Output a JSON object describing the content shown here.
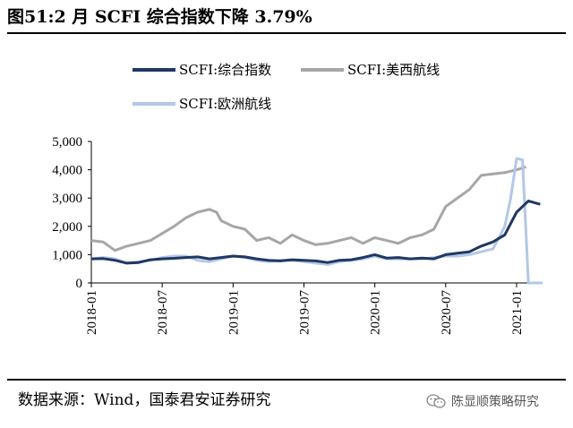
{
  "title": "图51:2 月 SCFI 综合指数下降 3.79%",
  "source": "数据来源：Wind，国泰君安证券研究",
  "watermark": "陈显顺策略研究",
  "colors": {
    "composite": "#1f3864",
    "us_west": "#a6a6a6",
    "europe": "#b4c7e7"
  },
  "chart_data": {
    "type": "line",
    "title": "",
    "xlabel": "",
    "ylabel": "",
    "ylim": [
      0,
      5000
    ],
    "yticks": [
      "5,000",
      "4,000",
      "3,000",
      "2,000",
      "1,000",
      "0"
    ],
    "yticks_values": [
      5000,
      4000,
      3000,
      2000,
      1000,
      0
    ],
    "xticks": [
      "2018-01",
      "2018-07",
      "2019-01",
      "2019-07",
      "2020-01",
      "2020-07",
      "2021-01"
    ],
    "xticks_values": [
      0,
      6,
      12,
      18,
      24,
      30,
      36
    ],
    "xlim": [
      0,
      38.2
    ],
    "legend_position": "top",
    "series": [
      {
        "name": "SCFI:综合指数",
        "key": "composite",
        "color": "#1f3864",
        "x": [
          0,
          1,
          2,
          3,
          4,
          5,
          6,
          7,
          8,
          9,
          10,
          11,
          12,
          13,
          14,
          15,
          16,
          17,
          18,
          19,
          20,
          21,
          22,
          23,
          24,
          25,
          26,
          27,
          28,
          29,
          30,
          31,
          32,
          33,
          34,
          35,
          36,
          37,
          38
        ],
        "values": [
          850,
          860,
          800,
          700,
          720,
          820,
          850,
          870,
          900,
          920,
          850,
          900,
          950,
          920,
          850,
          800,
          780,
          820,
          800,
          780,
          720,
          800,
          820,
          900,
          1000,
          880,
          900,
          850,
          880,
          850,
          1000,
          1050,
          1100,
          1300,
          1450,
          1700,
          2500,
          2900,
          2780
        ]
      },
      {
        "name": "SCFI:美西航线",
        "key": "us_west",
        "color": "#a6a6a6",
        "x": [
          0,
          1,
          2,
          3,
          4,
          5,
          6,
          7,
          8,
          9,
          10,
          10.6,
          11,
          12,
          13,
          14,
          15,
          16,
          17,
          18,
          19,
          20,
          21,
          22,
          23,
          24,
          25,
          26,
          27,
          28,
          29,
          30,
          31,
          32,
          33,
          34,
          35,
          36,
          36.8
        ],
        "values": [
          1500,
          1450,
          1150,
          1300,
          1400,
          1500,
          1750,
          2000,
          2300,
          2500,
          2600,
          2500,
          2200,
          2000,
          1900,
          1500,
          1600,
          1400,
          1700,
          1500,
          1350,
          1400,
          1500,
          1600,
          1400,
          1600,
          1500,
          1400,
          1600,
          1700,
          1900,
          2700,
          3000,
          3300,
          3800,
          3850,
          3900,
          4000,
          4100
        ]
      },
      {
        "name": "SCFI:欧洲航线",
        "key": "europe",
        "color": "#b4c7e7",
        "x": [
          0,
          1,
          2,
          3,
          4,
          5,
          6,
          7,
          8,
          9,
          10,
          11,
          12,
          13,
          14,
          15,
          16,
          17,
          18,
          19,
          20,
          21,
          22,
          23,
          24,
          25,
          26,
          27,
          28,
          29,
          30,
          31,
          32,
          33,
          34,
          35,
          35.5,
          36,
          36.5,
          37,
          37.3,
          37.6,
          38.2
        ],
        "values": [
          850,
          900,
          850,
          700,
          750,
          800,
          900,
          950,
          950,
          800,
          750,
          850,
          950,
          900,
          800,
          750,
          800,
          800,
          750,
          700,
          650,
          750,
          800,
          850,
          950,
          850,
          850,
          850,
          850,
          900,
          950,
          950,
          1000,
          1100,
          1200,
          2000,
          3000,
          4400,
          4350,
          0,
          0,
          0,
          0
        ]
      }
    ]
  }
}
